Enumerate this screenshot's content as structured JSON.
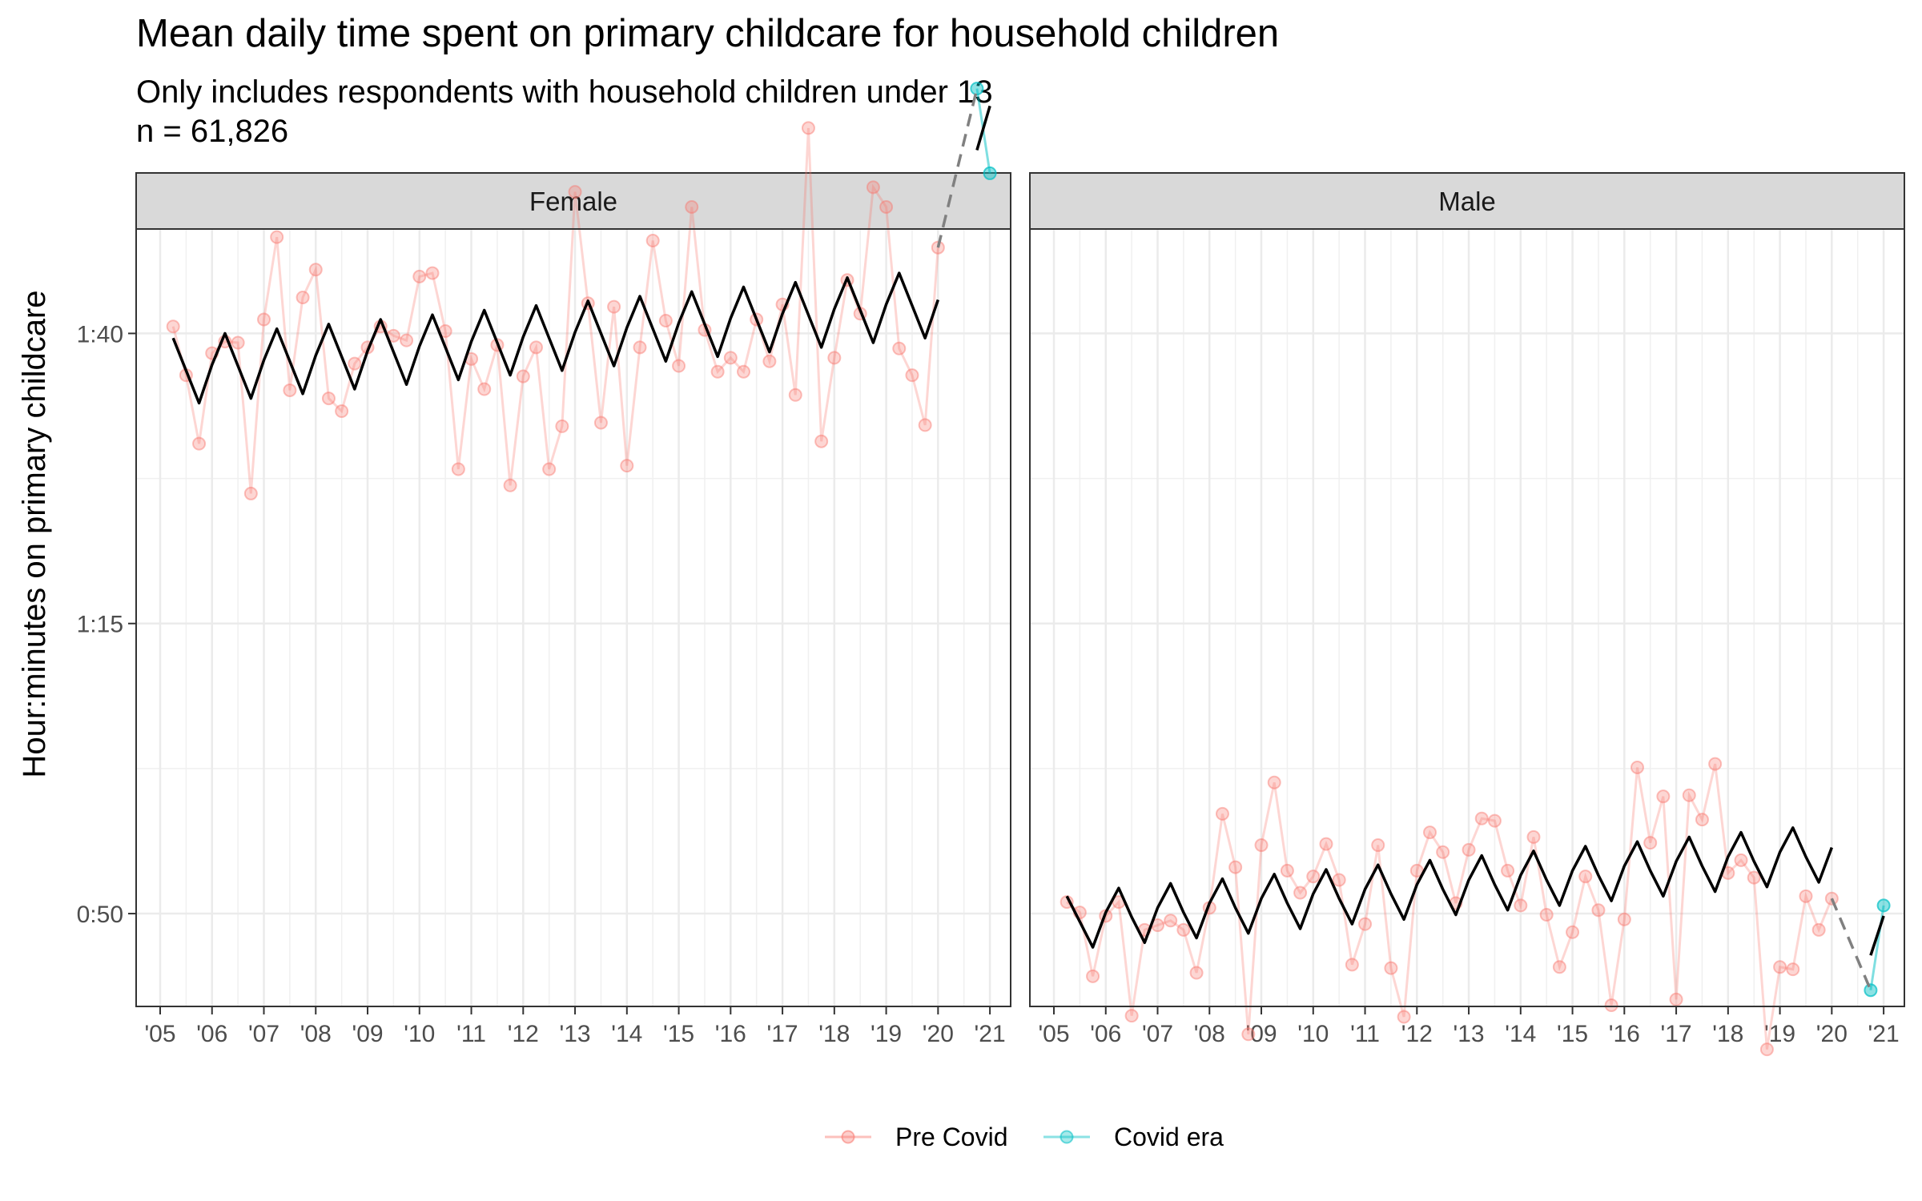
{
  "chart_data": {
    "type": "line",
    "title": "Mean daily time spent on primary childcare for household children",
    "subtitle_line1": "Only includes respondents with household children under 13",
    "subtitle_line2": "n = 61,826",
    "ylabel": "Hour:minutes on primary childcare",
    "xlabel": "",
    "xlim": [
      2005,
      2021.4
    ],
    "ylim": [
      42,
      109
    ],
    "x_ticks": [
      {
        "value": 2005,
        "label": "'05"
      },
      {
        "value": 2006,
        "label": "'06"
      },
      {
        "value": 2007,
        "label": "'07"
      },
      {
        "value": 2008,
        "label": "'08"
      },
      {
        "value": 2009,
        "label": "'09"
      },
      {
        "value": 2010,
        "label": "'10"
      },
      {
        "value": 2011,
        "label": "'11"
      },
      {
        "value": 2012,
        "label": "'12"
      },
      {
        "value": 2013,
        "label": "'13"
      },
      {
        "value": 2014,
        "label": "'14"
      },
      {
        "value": 2015,
        "label": "'15"
      },
      {
        "value": 2016,
        "label": "'16"
      },
      {
        "value": 2017,
        "label": "'17"
      },
      {
        "value": 2018,
        "label": "'18"
      },
      {
        "value": 2019,
        "label": "'19"
      },
      {
        "value": 2020,
        "label": "'20"
      },
      {
        "value": 2021,
        "label": "'21"
      }
    ],
    "y_ticks": [
      {
        "value": 50,
        "label": "0:50"
      },
      {
        "value": 75,
        "label": "1:15"
      },
      {
        "value": 100,
        "label": "1:40"
      }
    ],
    "legend": {
      "position": "bottom",
      "entries": [
        {
          "label": "Pre Covid",
          "color": "#F8766D"
        },
        {
          "label": "Covid era",
          "color": "#00BFC4"
        }
      ]
    },
    "colors": {
      "pre_covid": "#F8766D",
      "covid_era": "#00BFC4",
      "trend": "#000000",
      "gap": "#808080"
    },
    "grid": true,
    "panels": [
      {
        "label": "Female",
        "pre_covid": {
          "x": [
            2005.25,
            2005.5,
            2005.75,
            2006.0,
            2006.25,
            2006.5,
            2006.75,
            2007.0,
            2007.25,
            2007.5,
            2007.75,
            2008.0,
            2008.25,
            2008.5,
            2008.75,
            2009.0,
            2009.25,
            2009.5,
            2009.75,
            2010.0,
            2010.25,
            2010.5,
            2010.75,
            2011.0,
            2011.25,
            2011.5,
            2011.75,
            2012.0,
            2012.25,
            2012.5,
            2012.75,
            2013.0,
            2013.25,
            2013.5,
            2013.75,
            2014.0,
            2014.25,
            2014.5,
            2014.75,
            2015.0,
            2015.25,
            2015.5,
            2015.75,
            2016.0,
            2016.25,
            2016.5,
            2016.75,
            2017.0,
            2017.25,
            2017.5,
            2017.75,
            2018.0,
            2018.25,
            2018.5,
            2018.75,
            2019.0,
            2019.25,
            2019.5,
            2019.75,
            2020.0
          ],
          "y": [
            100.6,
            96.4,
            90.5,
            98.3,
            99.3,
            99.2,
            86.2,
            101.2,
            108.3,
            95.1,
            103.1,
            105.5,
            94.4,
            93.3,
            97.4,
            98.8,
            100.6,
            99.8,
            99.4,
            104.9,
            105.2,
            100.2,
            88.3,
            97.8,
            95.2,
            99.0,
            86.9,
            96.3,
            98.8,
            88.3,
            92.0,
            112.2,
            102.6,
            92.3,
            102.3,
            88.6,
            98.8,
            108.0,
            101.1,
            97.2,
            110.9,
            100.3,
            96.7,
            97.9,
            96.7,
            101.2,
            97.6,
            102.5,
            94.7,
            117.7,
            90.7,
            97.9,
            104.6,
            101.7,
            112.6,
            110.9,
            98.7,
            96.4,
            92.1,
            107.4
          ]
        },
        "covid_era": {
          "x": [
            2020.75,
            2021.0
          ],
          "y": [
            121.1,
            113.8
          ]
        },
        "trend": {
          "pre_x": [
            2005.25,
            2005.5,
            2005.75,
            2006.0,
            2006.25,
            2006.5,
            2006.75,
            2007.0,
            2007.25,
            2007.5,
            2007.75,
            2008.0,
            2008.25,
            2008.5,
            2008.75,
            2009.0,
            2009.25,
            2009.5,
            2009.75,
            2010.0,
            2010.25,
            2010.5,
            2010.75,
            2011.0,
            2011.25,
            2011.5,
            2011.75,
            2012.0,
            2012.25,
            2012.5,
            2012.75,
            2013.0,
            2013.25,
            2013.5,
            2013.75,
            2014.0,
            2014.25,
            2014.5,
            2014.75,
            2015.0,
            2015.25,
            2015.5,
            2015.75,
            2016.0,
            2016.25,
            2016.5,
            2016.75,
            2017.0,
            2017.25,
            2017.5,
            2017.75,
            2018.0,
            2018.25,
            2018.5,
            2018.75,
            2019.0,
            2019.25,
            2019.5,
            2019.75,
            2020.0
          ],
          "pre_y": [
            99.6,
            96.8,
            94.0,
            97.3,
            100.0,
            97.2,
            94.4,
            97.7,
            100.4,
            97.6,
            94.8,
            98.1,
            100.8,
            98.0,
            95.2,
            98.5,
            101.2,
            98.4,
            95.6,
            98.9,
            101.6,
            98.8,
            96.0,
            99.3,
            102.0,
            99.2,
            96.4,
            99.7,
            102.4,
            99.6,
            96.8,
            100.1,
            102.8,
            100.0,
            97.2,
            100.5,
            103.2,
            100.4,
            97.6,
            100.9,
            103.6,
            100.8,
            98.0,
            101.3,
            104.0,
            101.2,
            98.4,
            101.7,
            104.4,
            101.6,
            98.8,
            102.1,
            104.8,
            102.0,
            99.2,
            102.5,
            105.2,
            102.4,
            99.6,
            102.9
          ],
          "covid_x": [
            2020.75,
            2021.0
          ],
          "covid_y": [
            115.8,
            119.6
          ],
          "gap_x": [
            2020.0,
            2020.75
          ],
          "gap_y": [
            107.4,
            121.1
          ]
        }
      },
      {
        "label": "Male",
        "pre_covid": {
          "x": [
            2005.25,
            2005.5,
            2005.75,
            2006.0,
            2006.25,
            2006.5,
            2006.75,
            2007.0,
            2007.25,
            2007.5,
            2007.75,
            2008.0,
            2008.25,
            2008.5,
            2008.75,
            2009.0,
            2009.25,
            2009.5,
            2009.75,
            2010.0,
            2010.25,
            2010.5,
            2010.75,
            2011.0,
            2011.25,
            2011.5,
            2011.75,
            2012.0,
            2012.25,
            2012.5,
            2012.75,
            2013.0,
            2013.25,
            2013.5,
            2013.75,
            2014.0,
            2014.25,
            2014.5,
            2014.75,
            2015.0,
            2015.25,
            2015.5,
            2015.75,
            2016.0,
            2016.25,
            2016.5,
            2016.75,
            2017.0,
            2017.25,
            2017.5,
            2017.75,
            2018.0,
            2018.25,
            2018.5,
            2018.75,
            2019.0,
            2019.25,
            2019.5,
            2019.75,
            2020.0
          ],
          "y": [
            51.0,
            50.1,
            44.6,
            49.8,
            51.0,
            41.2,
            48.6,
            49.0,
            49.4,
            48.6,
            44.9,
            50.5,
            58.6,
            54.0,
            39.6,
            55.9,
            61.3,
            53.7,
            51.8,
            53.2,
            56.0,
            52.9,
            45.6,
            49.1,
            55.9,
            45.3,
            41.1,
            53.7,
            57.0,
            55.3,
            50.9,
            55.5,
            58.2,
            58.0,
            53.7,
            50.7,
            56.6,
            49.9,
            45.4,
            48.4,
            53.2,
            50.3,
            42.1,
            49.5,
            62.6,
            56.1,
            60.1,
            42.6,
            60.2,
            58.1,
            62.9,
            53.5,
            54.6,
            53.1,
            38.3,
            45.4,
            45.2,
            51.5,
            48.6,
            51.3
          ]
        },
        "covid_era": {
          "x": [
            2020.75,
            2021.0
          ],
          "y": [
            43.4,
            50.7
          ]
        },
        "trend": {
          "pre_x": [
            2005.25,
            2005.5,
            2005.75,
            2006.0,
            2006.25,
            2006.5,
            2006.75,
            2007.0,
            2007.25,
            2007.5,
            2007.75,
            2008.0,
            2008.25,
            2008.5,
            2008.75,
            2009.0,
            2009.25,
            2009.5,
            2009.75,
            2010.0,
            2010.25,
            2010.5,
            2010.75,
            2011.0,
            2011.25,
            2011.5,
            2011.75,
            2012.0,
            2012.25,
            2012.5,
            2012.75,
            2013.0,
            2013.25,
            2013.5,
            2013.75,
            2014.0,
            2014.25,
            2014.5,
            2014.75,
            2015.0,
            2015.25,
            2015.5,
            2015.75,
            2016.0,
            2016.25,
            2016.5,
            2016.75,
            2017.0,
            2017.25,
            2017.5,
            2017.75,
            2018.0,
            2018.25,
            2018.5,
            2018.75,
            2019.0,
            2019.25,
            2019.5,
            2019.75,
            2020.0
          ],
          "pre_y": [
            51.5,
            49.3,
            47.1,
            50.1,
            52.2,
            49.7,
            47.5,
            50.5,
            52.6,
            50.1,
            47.9,
            50.9,
            53.0,
            50.5,
            48.3,
            51.3,
            53.4,
            50.9,
            48.7,
            51.7,
            53.8,
            51.3,
            49.1,
            52.1,
            54.2,
            51.7,
            49.5,
            52.5,
            54.6,
            52.1,
            49.9,
            52.9,
            55.0,
            52.5,
            50.3,
            53.3,
            55.4,
            52.9,
            50.7,
            53.7,
            55.8,
            53.3,
            51.1,
            54.1,
            56.2,
            53.7,
            51.5,
            54.5,
            56.6,
            54.1,
            51.9,
            54.9,
            57.0,
            54.5,
            52.3,
            55.3,
            57.4,
            54.9,
            52.7,
            55.7
          ],
          "covid_x": [
            2020.75,
            2021.0
          ],
          "covid_y": [
            46.4,
            49.8
          ],
          "gap_x": [
            2020.0,
            2020.75
          ],
          "gap_y": [
            51.3,
            43.4
          ]
        }
      }
    ]
  }
}
